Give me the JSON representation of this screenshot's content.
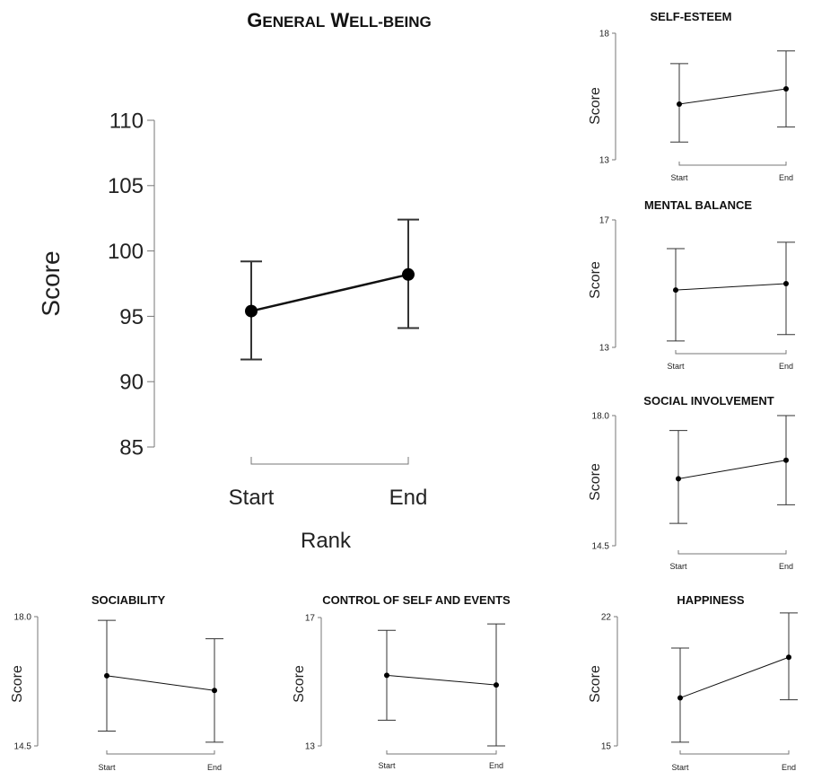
{
  "figure": {
    "background": "#ffffff",
    "ink": "#000000",
    "axis_color": "#777777"
  },
  "chart_data": [
    {
      "type": "line",
      "id": "general",
      "title": "GENERAL WELL-BEING",
      "xlabel": "Rank",
      "ylabel": "Score",
      "categories": [
        "Start",
        "End"
      ],
      "values": [
        95.4,
        98.2
      ],
      "error_low": [
        91.7,
        94.1
      ],
      "error_high": [
        99.2,
        102.4
      ],
      "ylim": [
        85,
        110
      ],
      "yticks": [
        85,
        90,
        95,
        100,
        105,
        110
      ],
      "ytick_labels": [
        "85",
        "90",
        "95",
        "100",
        "105",
        "110"
      ]
    },
    {
      "type": "line",
      "id": "selfesteem",
      "title": "SELF-ESTEEM",
      "ylabel": "Score",
      "categories": [
        "Start",
        "End"
      ],
      "values": [
        15.2,
        15.8
      ],
      "error_low": [
        13.7,
        14.3
      ],
      "error_high": [
        16.8,
        17.3
      ],
      "ylim": [
        13,
        18
      ],
      "yticks": [
        13,
        18
      ],
      "ytick_labels": [
        "13",
        "18"
      ]
    },
    {
      "type": "line",
      "id": "mental",
      "title": "MENTAL BALANCE",
      "ylabel": "Score",
      "categories": [
        "Start",
        "End"
      ],
      "values": [
        14.8,
        15.0
      ],
      "error_low": [
        13.2,
        13.4
      ],
      "error_high": [
        16.1,
        16.3
      ],
      "ylim": [
        13,
        17
      ],
      "yticks": [
        13,
        17
      ],
      "ytick_labels": [
        "13",
        "17"
      ]
    },
    {
      "type": "line",
      "id": "social",
      "title": "SOCIAL INVOLVEMENT",
      "ylabel": "Score",
      "categories": [
        "Start",
        "End"
      ],
      "values": [
        16.3,
        16.8
      ],
      "error_low": [
        15.1,
        15.6
      ],
      "error_high": [
        17.6,
        18.0
      ],
      "ylim": [
        14.5,
        18.0
      ],
      "yticks": [
        14.5,
        18.0
      ],
      "ytick_labels": [
        "14.5",
        "18.0"
      ]
    },
    {
      "type": "line",
      "id": "sociability",
      "title": "SOCIABILITY",
      "ylabel": "Score",
      "categories": [
        "Start",
        "End"
      ],
      "values": [
        16.4,
        16.0
      ],
      "error_low": [
        14.9,
        14.6
      ],
      "error_high": [
        17.9,
        17.4
      ],
      "ylim": [
        14.5,
        18.0
      ],
      "yticks": [
        14.5,
        18.0
      ],
      "ytick_labels": [
        "14.5",
        "18.0"
      ]
    },
    {
      "type": "line",
      "id": "control",
      "title": "CONTROL OF SELF AND EVENTS",
      "ylabel": "Score",
      "categories": [
        "Start",
        "End"
      ],
      "values": [
        15.2,
        14.9
      ],
      "error_low": [
        13.8,
        13.0
      ],
      "error_high": [
        16.6,
        16.8
      ],
      "ylim": [
        13,
        17
      ],
      "yticks": [
        13,
        17
      ],
      "ytick_labels": [
        "13",
        "17"
      ]
    },
    {
      "type": "line",
      "id": "happiness",
      "title": "HAPPINESS",
      "ylabel": "Score",
      "categories": [
        "Start",
        "End"
      ],
      "values": [
        17.6,
        19.8
      ],
      "error_low": [
        15.2,
        17.5
      ],
      "error_high": [
        20.3,
        22.2
      ],
      "ylim": [
        15,
        22
      ],
      "yticks": [
        15,
        22
      ],
      "ytick_labels": [
        "15",
        "22"
      ]
    }
  ]
}
